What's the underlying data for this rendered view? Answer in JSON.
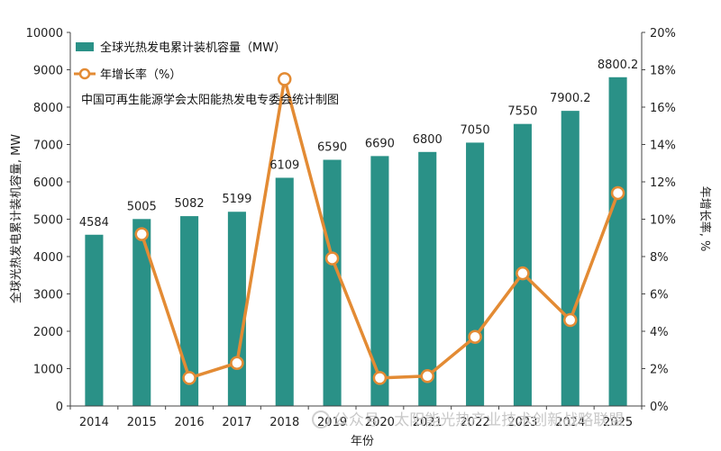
{
  "chart_data": {
    "type": "bar",
    "categories": [
      "2014",
      "2015",
      "2016",
      "2017",
      "2018",
      "2019",
      "2020",
      "2021",
      "2022",
      "2023",
      "2024",
      "2025"
    ],
    "series": [
      {
        "name": "全球光热发电累计装机容量（MW）",
        "type": "bar",
        "axis": "left",
        "values": [
          4584,
          5005,
          5082,
          5199,
          6109,
          6590,
          6690,
          6800,
          7050,
          7550,
          7900.2,
          8800.2
        ],
        "labels": [
          "4584",
          "5005",
          "5082",
          "5199",
          "6109",
          "6590",
          "6690",
          "6800",
          "7050",
          "7550",
          "7900.2",
          "8800.2"
        ],
        "color": "#2a9187"
      },
      {
        "name": "年增长率（%）",
        "type": "line",
        "axis": "right",
        "values": [
          null,
          9.2,
          1.5,
          2.3,
          17.5,
          7.9,
          1.5,
          1.6,
          3.7,
          7.1,
          4.6,
          11.4
        ],
        "color": "#e38b34"
      }
    ],
    "xlabel": "年份",
    "ylabel": "全球光热发电累计装机容量, MW",
    "y2label": "年增长率, %",
    "ylim": [
      0,
      10000
    ],
    "yticks": [
      "0",
      "1000",
      "2000",
      "3000",
      "4000",
      "5000",
      "6000",
      "7000",
      "8000",
      "9000",
      "10000"
    ],
    "y2lim": [
      0,
      20
    ],
    "y2ticks": [
      "0%",
      "2%",
      "4%",
      "6%",
      "8%",
      "10%",
      "12%",
      "14%",
      "16%",
      "18%",
      "20%"
    ],
    "legend_position": "top-left",
    "annotation": "中国可再生能源学会太阳能热发电专委会统计制图"
  },
  "watermark": "公众号 · 太阳能光热产业技术创新战略联盟"
}
